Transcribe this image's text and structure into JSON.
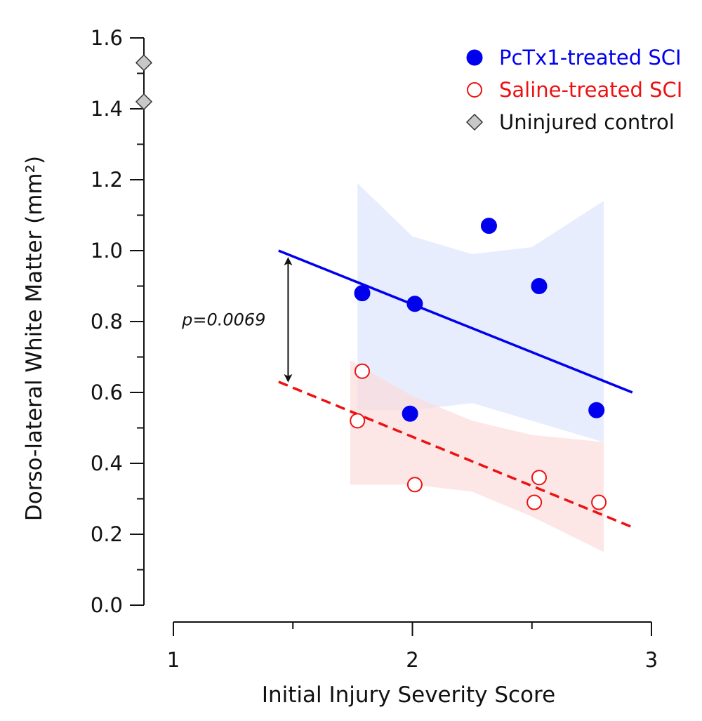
{
  "chart_data": {
    "type": "scatter",
    "title": "",
    "xlabel": "Initial Injury Severity Score",
    "ylabel": "Dorso-lateral White Matter (mm²)",
    "xlim": [
      1,
      3
    ],
    "ylim": [
      0,
      1.6
    ],
    "x_ticks": [
      1,
      2,
      3
    ],
    "x_tick_labels": [
      "1",
      "2",
      "3"
    ],
    "y_ticks": [
      0.0,
      0.2,
      0.4,
      0.6,
      0.8,
      1.0,
      1.2,
      1.4,
      1.6
    ],
    "y_tick_labels": [
      "0.0",
      "0.2",
      "0.4",
      "0.6",
      "0.8",
      "1.0",
      "1.2",
      "1.4",
      "1.6"
    ],
    "grid": false,
    "legend_position": "top-right",
    "series": [
      {
        "name": "PcTx1-treated SCI",
        "color": "#0000ee",
        "marker": "filled-circle",
        "points": [
          {
            "x": 1.79,
            "y": 0.88
          },
          {
            "x": 2.01,
            "y": 0.85
          },
          {
            "x": 1.99,
            "y": 0.54
          },
          {
            "x": 2.32,
            "y": 1.07
          },
          {
            "x": 2.53,
            "y": 0.9
          },
          {
            "x": 2.77,
            "y": 0.55
          }
        ],
        "fit_line": {
          "x": [
            1.44,
            2.92
          ],
          "y": [
            1.0,
            0.6
          ],
          "style": "solid"
        },
        "ci_band": {
          "color": "#dde6fb",
          "x": [
            1.77,
            2.0,
            2.25,
            2.5,
            2.8
          ],
          "upper": [
            1.19,
            1.04,
            0.99,
            1.01,
            1.14
          ],
          "lower": [
            0.55,
            0.55,
            0.57,
            0.52,
            0.46
          ]
        }
      },
      {
        "name": "Saline-treated SCI",
        "color": "#ee1111",
        "marker": "open-circle",
        "points": [
          {
            "x": 1.79,
            "y": 0.66
          },
          {
            "x": 1.77,
            "y": 0.52
          },
          {
            "x": 2.01,
            "y": 0.34
          },
          {
            "x": 2.51,
            "y": 0.29
          },
          {
            "x": 2.53,
            "y": 0.36
          },
          {
            "x": 2.78,
            "y": 0.29
          }
        ],
        "fit_line": {
          "x": [
            1.44,
            2.92
          ],
          "y": [
            0.63,
            0.22
          ],
          "style": "dashed"
        },
        "ci_band": {
          "color": "#fbdcdc",
          "x": [
            1.74,
            2.0,
            2.25,
            2.5,
            2.8
          ],
          "upper": [
            0.69,
            0.59,
            0.52,
            0.48,
            0.46
          ],
          "lower": [
            0.34,
            0.34,
            0.32,
            0.25,
            0.15
          ]
        }
      },
      {
        "name": "Uninjured control",
        "color": "#c8c8c8",
        "marker": "diamond",
        "points": [
          {
            "y": 1.53
          },
          {
            "y": 1.42
          }
        ]
      }
    ],
    "annotations": [
      {
        "text": "p=0.0069",
        "style": "double-arrow",
        "x": 1.48,
        "y_from": 0.97,
        "y_to": 0.64
      }
    ]
  }
}
